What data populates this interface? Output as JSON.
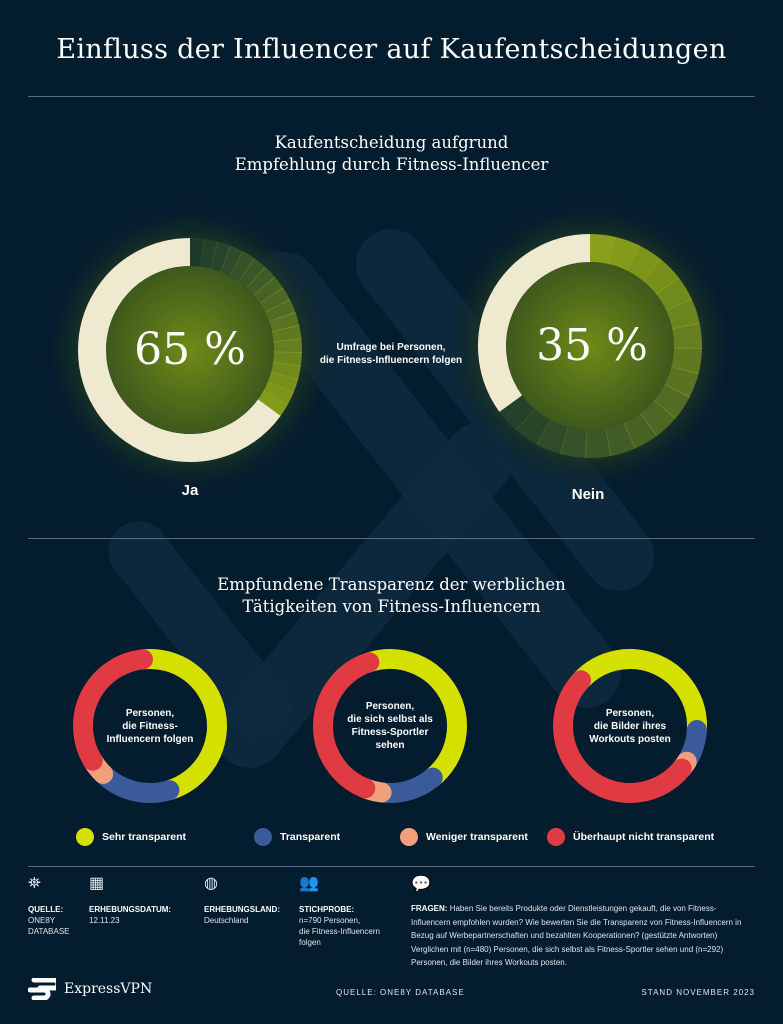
{
  "title": "Einfluss der Influencer auf Kaufentscheidungen",
  "section1": {
    "title_line1": "Kaufentscheidung aufgrund",
    "title_line2": "Empfehlung durch Fitness-Influencer",
    "note_line1": "Umfrage bei Personen,",
    "note_line2": "die Fitness-Influencern folgen"
  },
  "section2": {
    "title_line1": "Empfundene Transparenz der werblichen",
    "title_line2": "Tätigkeiten von Fitness-Influencern"
  },
  "chart_data": [
    {
      "type": "pie",
      "categories": [
        "Ja",
        "Nein"
      ],
      "values": [
        65,
        35
      ],
      "labels": [
        "65 %",
        "35 %"
      ],
      "colors": {
        "cream": "#efe9d0",
        "green": "#8aa01a"
      }
    },
    {
      "type": "pie",
      "legend_placement": "bottom",
      "categories": [
        "Sehr transparent",
        "Transparent",
        "Weniger transparent",
        "Überhaupt nicht transparent"
      ],
      "colors": [
        "#d4e000",
        "#3b5a99",
        "#f2a07c",
        "#e03a43"
      ],
      "series": [
        {
          "name": "Personen, die Fitness-Influencern folgen",
          "lines": [
            "Personen,",
            "die Fitness-",
            "Influencern folgen"
          ],
          "values": [
            47,
            17,
            4,
            32
          ]
        },
        {
          "name": "Personen, die sich selbst als Fitness-Sportler sehen",
          "lines": [
            "Personen,",
            "die sich selbst als",
            "Fitness-Sportler",
            "sehen"
          ],
          "values": [
            44,
            13,
            4,
            39
          ]
        },
        {
          "name": "Personen, die Bilder ihres Workouts posten",
          "lines": [
            "Personen,",
            "die Bilder ihres",
            "Workouts posten"
          ],
          "values": [
            39,
            8,
            2,
            51
          ]
        }
      ]
    }
  ],
  "meta": {
    "source_label": "QUELLE:",
    "source_value_1": "ONE8Y",
    "source_value_2": "DATABASE",
    "date_label": "ERHEBUNGSDATUM:",
    "date_value": "12.11.23",
    "country_label": "ERHEBUNGSLAND:",
    "country_value": "Deutschland",
    "sample_label": "STICHPROBE:",
    "sample_value_1": "n=790 Personen,",
    "sample_value_2": "die Fitness-Influencern",
    "sample_value_3": "folgen",
    "questions_label": "FRAGEN:",
    "questions_text": "Haben Sie bereits Produkte oder Dienstleistungen gekauft, die von Fitness-Influencern empfohlen wurden? Wie bewerten Sie die Transparenz von Fitness-Influencern in Bezug auf Werbepartnerschaften und bezahlten Kooperationen? (gestützte Antworten) Verglichen mit (n=480) Personen, die sich selbst als Fitness-Sportler sehen und (n=292) Personen, die Bilder ihres Workouts posten."
  },
  "footer": {
    "brand": "ExpressVPN",
    "source": "QUELLE: ONE8Y DATABASE",
    "date": "STAND NOVEMBER 2023"
  }
}
